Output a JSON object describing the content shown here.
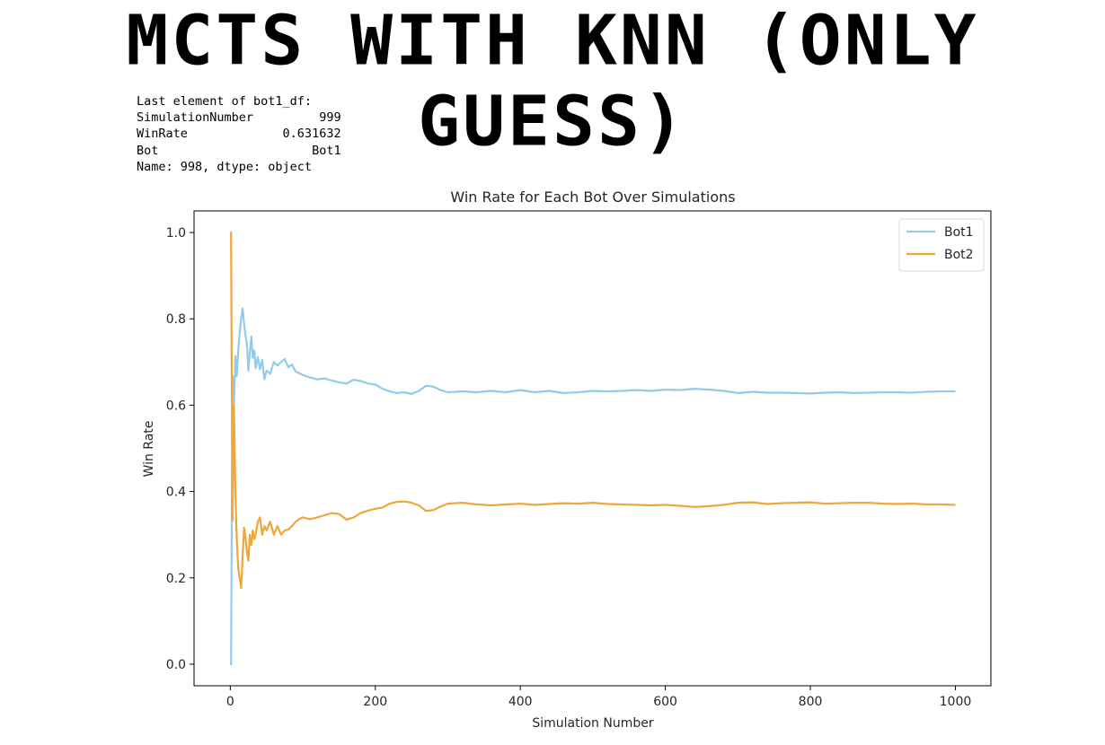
{
  "heading": "MCTS WITH KNN (ONLY GUESS)",
  "console": {
    "lines": [
      "Last element of bot1_df:",
      "SimulationNumber         999",
      "WinRate             0.631632",
      "Bot                     Bot1",
      "Name: 998, dtype: object"
    ]
  },
  "chart_data": {
    "type": "line",
    "title": "Win Rate for Each Bot Over Simulations",
    "xlabel": "Simulation Number",
    "ylabel": "Win Rate",
    "xlim": [
      -50,
      1049
    ],
    "ylim": [
      -0.05,
      1.05
    ],
    "xticks": [
      0,
      200,
      400,
      600,
      800,
      1000
    ],
    "yticks": [
      0.0,
      0.2,
      0.4,
      0.6,
      0.8,
      1.0
    ],
    "grid": false,
    "legend": "top-right",
    "series": [
      {
        "name": "Bot1",
        "color": "#95CBE6",
        "x": [
          1,
          3,
          5,
          7,
          9,
          11,
          13,
          15,
          17,
          19,
          21,
          23,
          25,
          27,
          29,
          31,
          33,
          35,
          38,
          41,
          44,
          47,
          50,
          55,
          60,
          65,
          70,
          75,
          80,
          85,
          90,
          95,
          100,
          110,
          120,
          130,
          140,
          150,
          160,
          170,
          180,
          190,
          200,
          210,
          220,
          230,
          240,
          250,
          260,
          270,
          280,
          290,
          300,
          320,
          340,
          360,
          380,
          400,
          420,
          440,
          460,
          480,
          500,
          520,
          540,
          560,
          580,
          600,
          620,
          640,
          660,
          680,
          700,
          720,
          740,
          760,
          780,
          800,
          820,
          840,
          860,
          880,
          900,
          920,
          940,
          960,
          980,
          999
        ],
        "y": [
          0.0,
          0.667,
          0.6,
          0.714,
          0.667,
          0.727,
          0.769,
          0.8,
          0.824,
          0.789,
          0.762,
          0.739,
          0.68,
          0.722,
          0.759,
          0.71,
          0.727,
          0.686,
          0.711,
          0.683,
          0.705,
          0.66,
          0.68,
          0.673,
          0.7,
          0.692,
          0.7,
          0.707,
          0.688,
          0.694,
          0.678,
          0.674,
          0.67,
          0.664,
          0.66,
          0.662,
          0.657,
          0.653,
          0.65,
          0.659,
          0.656,
          0.65,
          0.648,
          0.638,
          0.632,
          0.628,
          0.63,
          0.626,
          0.633,
          0.645,
          0.643,
          0.635,
          0.63,
          0.632,
          0.63,
          0.633,
          0.63,
          0.635,
          0.63,
          0.633,
          0.628,
          0.63,
          0.633,
          0.632,
          0.633,
          0.635,
          0.633,
          0.636,
          0.635,
          0.638,
          0.636,
          0.633,
          0.628,
          0.631,
          0.629,
          0.629,
          0.628,
          0.627,
          0.629,
          0.63,
          0.628,
          0.629,
          0.63,
          0.63,
          0.629,
          0.631,
          0.632,
          0.632
        ]
      },
      {
        "name": "Bot2",
        "color": "#EFA73A",
        "x": [
          1,
          3,
          5,
          7,
          9,
          11,
          13,
          15,
          17,
          19,
          21,
          23,
          25,
          27,
          29,
          31,
          33,
          35,
          38,
          41,
          44,
          47,
          50,
          55,
          60,
          65,
          70,
          75,
          80,
          85,
          90,
          95,
          100,
          110,
          120,
          130,
          140,
          150,
          160,
          170,
          180,
          190,
          200,
          210,
          220,
          230,
          240,
          250,
          260,
          270,
          280,
          290,
          300,
          320,
          340,
          360,
          380,
          400,
          420,
          440,
          460,
          480,
          500,
          520,
          540,
          560,
          580,
          600,
          620,
          640,
          660,
          680,
          700,
          720,
          740,
          760,
          780,
          800,
          820,
          840,
          860,
          880,
          900,
          920,
          940,
          960,
          980,
          999
        ],
        "y": [
          1.0,
          0.333,
          0.6,
          0.4,
          0.286,
          0.222,
          0.2,
          0.176,
          0.25,
          0.316,
          0.292,
          0.26,
          0.24,
          0.3,
          0.276,
          0.31,
          0.29,
          0.3,
          0.33,
          0.34,
          0.3,
          0.32,
          0.31,
          0.33,
          0.3,
          0.32,
          0.3,
          0.31,
          0.312,
          0.32,
          0.33,
          0.336,
          0.34,
          0.336,
          0.34,
          0.345,
          0.35,
          0.348,
          0.335,
          0.34,
          0.35,
          0.356,
          0.36,
          0.363,
          0.372,
          0.376,
          0.377,
          0.374,
          0.368,
          0.355,
          0.357,
          0.365,
          0.372,
          0.374,
          0.37,
          0.368,
          0.37,
          0.372,
          0.369,
          0.371,
          0.373,
          0.372,
          0.374,
          0.371,
          0.37,
          0.369,
          0.368,
          0.369,
          0.367,
          0.364,
          0.366,
          0.369,
          0.374,
          0.375,
          0.371,
          0.373,
          0.374,
          0.375,
          0.372,
          0.373,
          0.374,
          0.374,
          0.372,
          0.371,
          0.372,
          0.37,
          0.37,
          0.369
        ]
      }
    ]
  }
}
